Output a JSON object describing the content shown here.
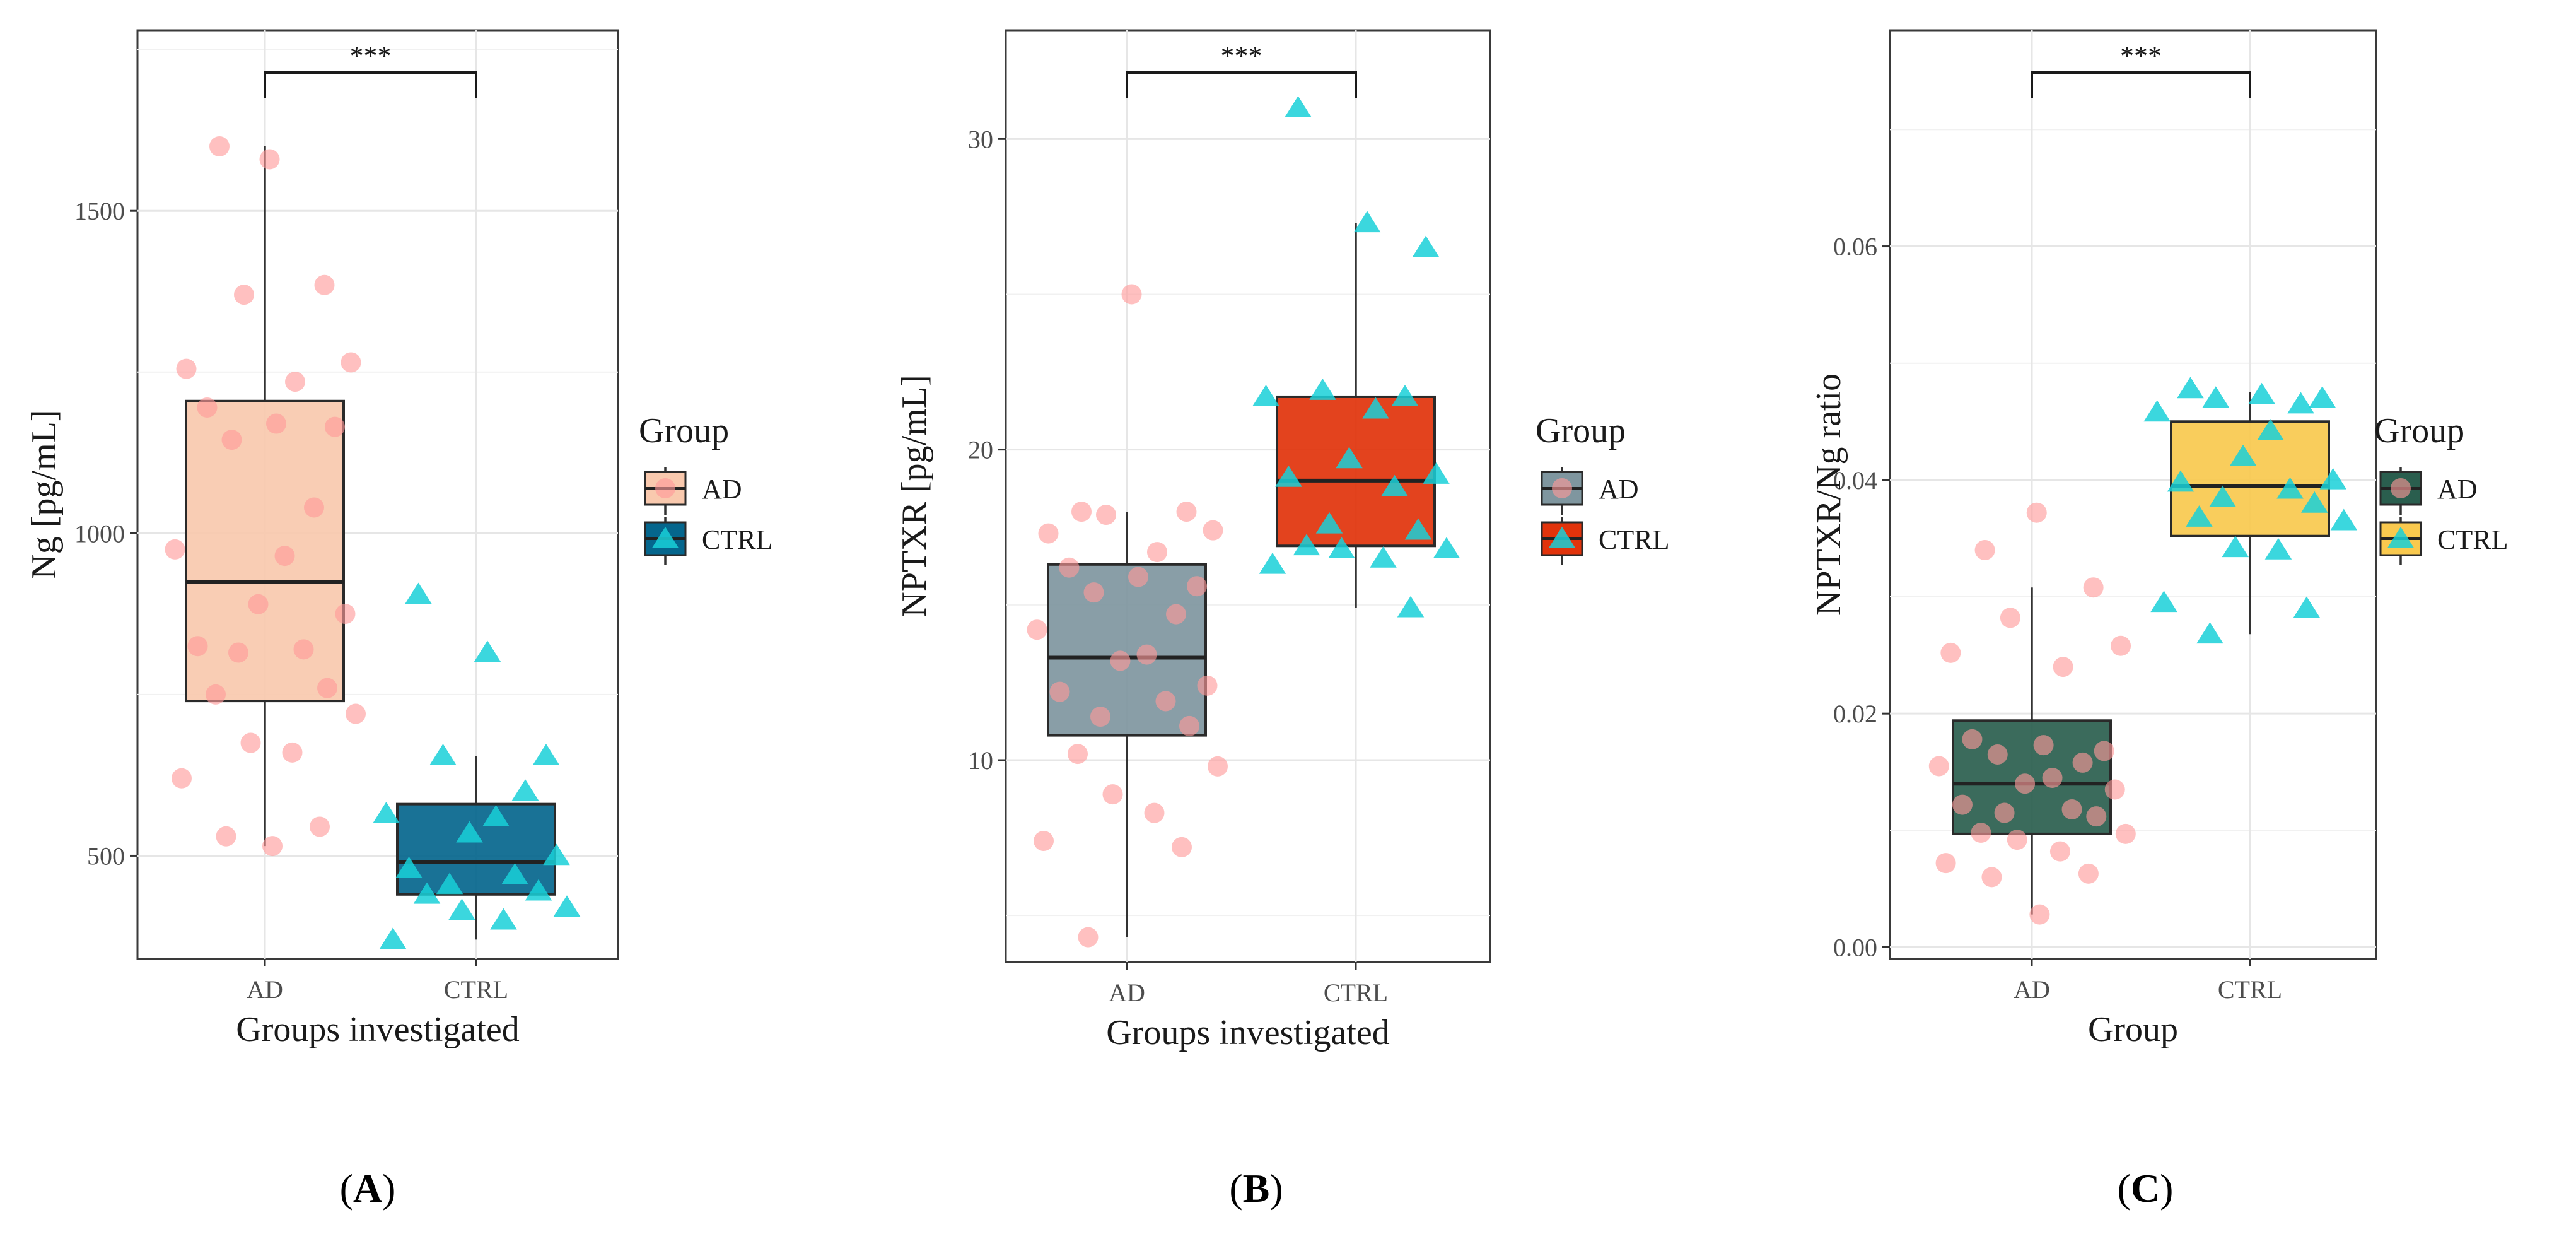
{
  "chart_data": [
    {
      "type": "box",
      "panel_label": "A",
      "title": "",
      "xlabel": "Groups investigated",
      "ylabel": "Ng [pg/mL]",
      "ylim": [
        340,
        1780
      ],
      "yticks": [
        500,
        1000,
        1500
      ],
      "categories": [
        "AD",
        "CTRL"
      ],
      "legend": {
        "title": "Group",
        "labels": [
          "AD",
          "CTRL"
        ],
        "position": "right"
      },
      "significance": "***",
      "colors": {
        "AD_box": "#f9c9ae",
        "CTRL_box": "#05668d",
        "AD_points": "#ff9a9a",
        "CTRL_points": "#19d0d8"
      },
      "boxes": [
        {
          "group": "AD",
          "whisker_low": 515,
          "q1": 740,
          "median": 925,
          "q3": 1205,
          "whisker_high": 1600
        },
        {
          "group": "CTRL",
          "whisker_low": 370,
          "q1": 440,
          "median": 490,
          "q3": 580,
          "whisker_high": 655
        }
      ],
      "points": [
        {
          "group": "AD",
          "values": [
            1580,
            1600,
            1385,
            1370,
            1265,
            1255,
            1235,
            1195,
            1170,
            1165,
            1145,
            1040,
            975,
            965,
            890,
            875,
            825,
            820,
            815,
            760,
            750,
            720,
            675,
            660,
            620,
            545,
            530,
            515
          ]
        },
        {
          "group": "CTRL",
          "values": [
            905,
            815,
            655,
            655,
            600,
            565,
            560,
            535,
            500,
            480,
            470,
            455,
            445,
            440,
            420,
            415,
            400,
            370
          ]
        }
      ]
    },
    {
      "type": "box",
      "panel_label": "B",
      "title": "",
      "xlabel": "Groups investigated",
      "ylabel": "NPTXR [pg/mL]",
      "ylim": [
        3.5,
        33.5
      ],
      "yticks": [
        10,
        20,
        30
      ],
      "categories": [
        "AD",
        "CTRL"
      ],
      "legend": {
        "title": "Group",
        "labels": [
          "AD",
          "CTRL"
        ],
        "position": "right"
      },
      "significance": "***",
      "colors": {
        "AD_box": "#7f969f",
        "CTRL_box": "#e1330b",
        "AD_points": "#ff9a9a",
        "CTRL_points": "#19d0d8"
      },
      "boxes": [
        {
          "group": "AD",
          "whisker_low": 4.3,
          "q1": 10.8,
          "median": 13.3,
          "q3": 16.3,
          "whisker_high": 18.0
        },
        {
          "group": "CTRL",
          "whisker_low": 14.9,
          "q1": 16.9,
          "median": 19.0,
          "q3": 21.7,
          "whisker_high": 27.3
        }
      ],
      "points": [
        {
          "group": "AD",
          "values": [
            25.0,
            18.0,
            18.0,
            17.9,
            17.4,
            17.3,
            16.7,
            16.2,
            15.9,
            15.6,
            15.4,
            14.7,
            14.2,
            13.4,
            13.2,
            12.4,
            12.2,
            11.9,
            11.4,
            11.1,
            10.2,
            9.8,
            8.9,
            8.3,
            7.4,
            7.2,
            4.3
          ]
        },
        {
          "group": "CTRL",
          "values": [
            31.0,
            27.3,
            26.5,
            21.9,
            21.7,
            21.7,
            21.3,
            19.7,
            19.2,
            19.1,
            18.8,
            17.6,
            17.4,
            16.9,
            16.8,
            16.8,
            16.5,
            16.3,
            14.9
          ]
        }
      ]
    },
    {
      "type": "box",
      "panel_label": "C",
      "title": "",
      "xlabel": "Group",
      "ylabel": "NPTXR/Ng ratio",
      "ylim": [
        -0.001,
        0.0785
      ],
      "yticks": [
        0.0,
        0.02,
        0.04,
        0.06
      ],
      "ytick_labels": [
        "0.00",
        "0.02",
        "0.04",
        "0.06"
      ],
      "categories": [
        "AD",
        "CTRL"
      ],
      "legend": {
        "title": "Group",
        "labels": [
          "AD",
          "CTRL"
        ],
        "position": "right"
      },
      "significance": "***",
      "colors": {
        "AD_box": "#2a5e4e",
        "CTRL_box": "#f9c94e",
        "AD_points": "#ff9a9a",
        "CTRL_points": "#19d0d8"
      },
      "boxes": [
        {
          "group": "AD",
          "whisker_low": 0.0028,
          "q1": 0.0097,
          "median": 0.014,
          "q3": 0.0194,
          "whisker_high": 0.0308
        },
        {
          "group": "CTRL",
          "whisker_low": 0.0268,
          "q1": 0.0352,
          "median": 0.0395,
          "q3": 0.045,
          "whisker_high": 0.0475
        }
      ],
      "points": [
        {
          "group": "AD",
          "values": [
            0.0372,
            0.034,
            0.0308,
            0.0282,
            0.0258,
            0.0252,
            0.024,
            0.0178,
            0.0173,
            0.0168,
            0.0165,
            0.0158,
            0.0155,
            0.0145,
            0.014,
            0.0135,
            0.0122,
            0.0118,
            0.0115,
            0.0112,
            0.0098,
            0.0097,
            0.0092,
            0.0082,
            0.0072,
            0.0063,
            0.006,
            0.0028
          ]
        },
        {
          "group": "CTRL",
          "values": [
            0.0478,
            0.0473,
            0.047,
            0.047,
            0.0465,
            0.0458,
            0.0442,
            0.042,
            0.04,
            0.0398,
            0.0392,
            0.0385,
            0.038,
            0.0368,
            0.0365,
            0.0342,
            0.034,
            0.0295,
            0.029,
            0.0268
          ]
        }
      ]
    }
  ]
}
